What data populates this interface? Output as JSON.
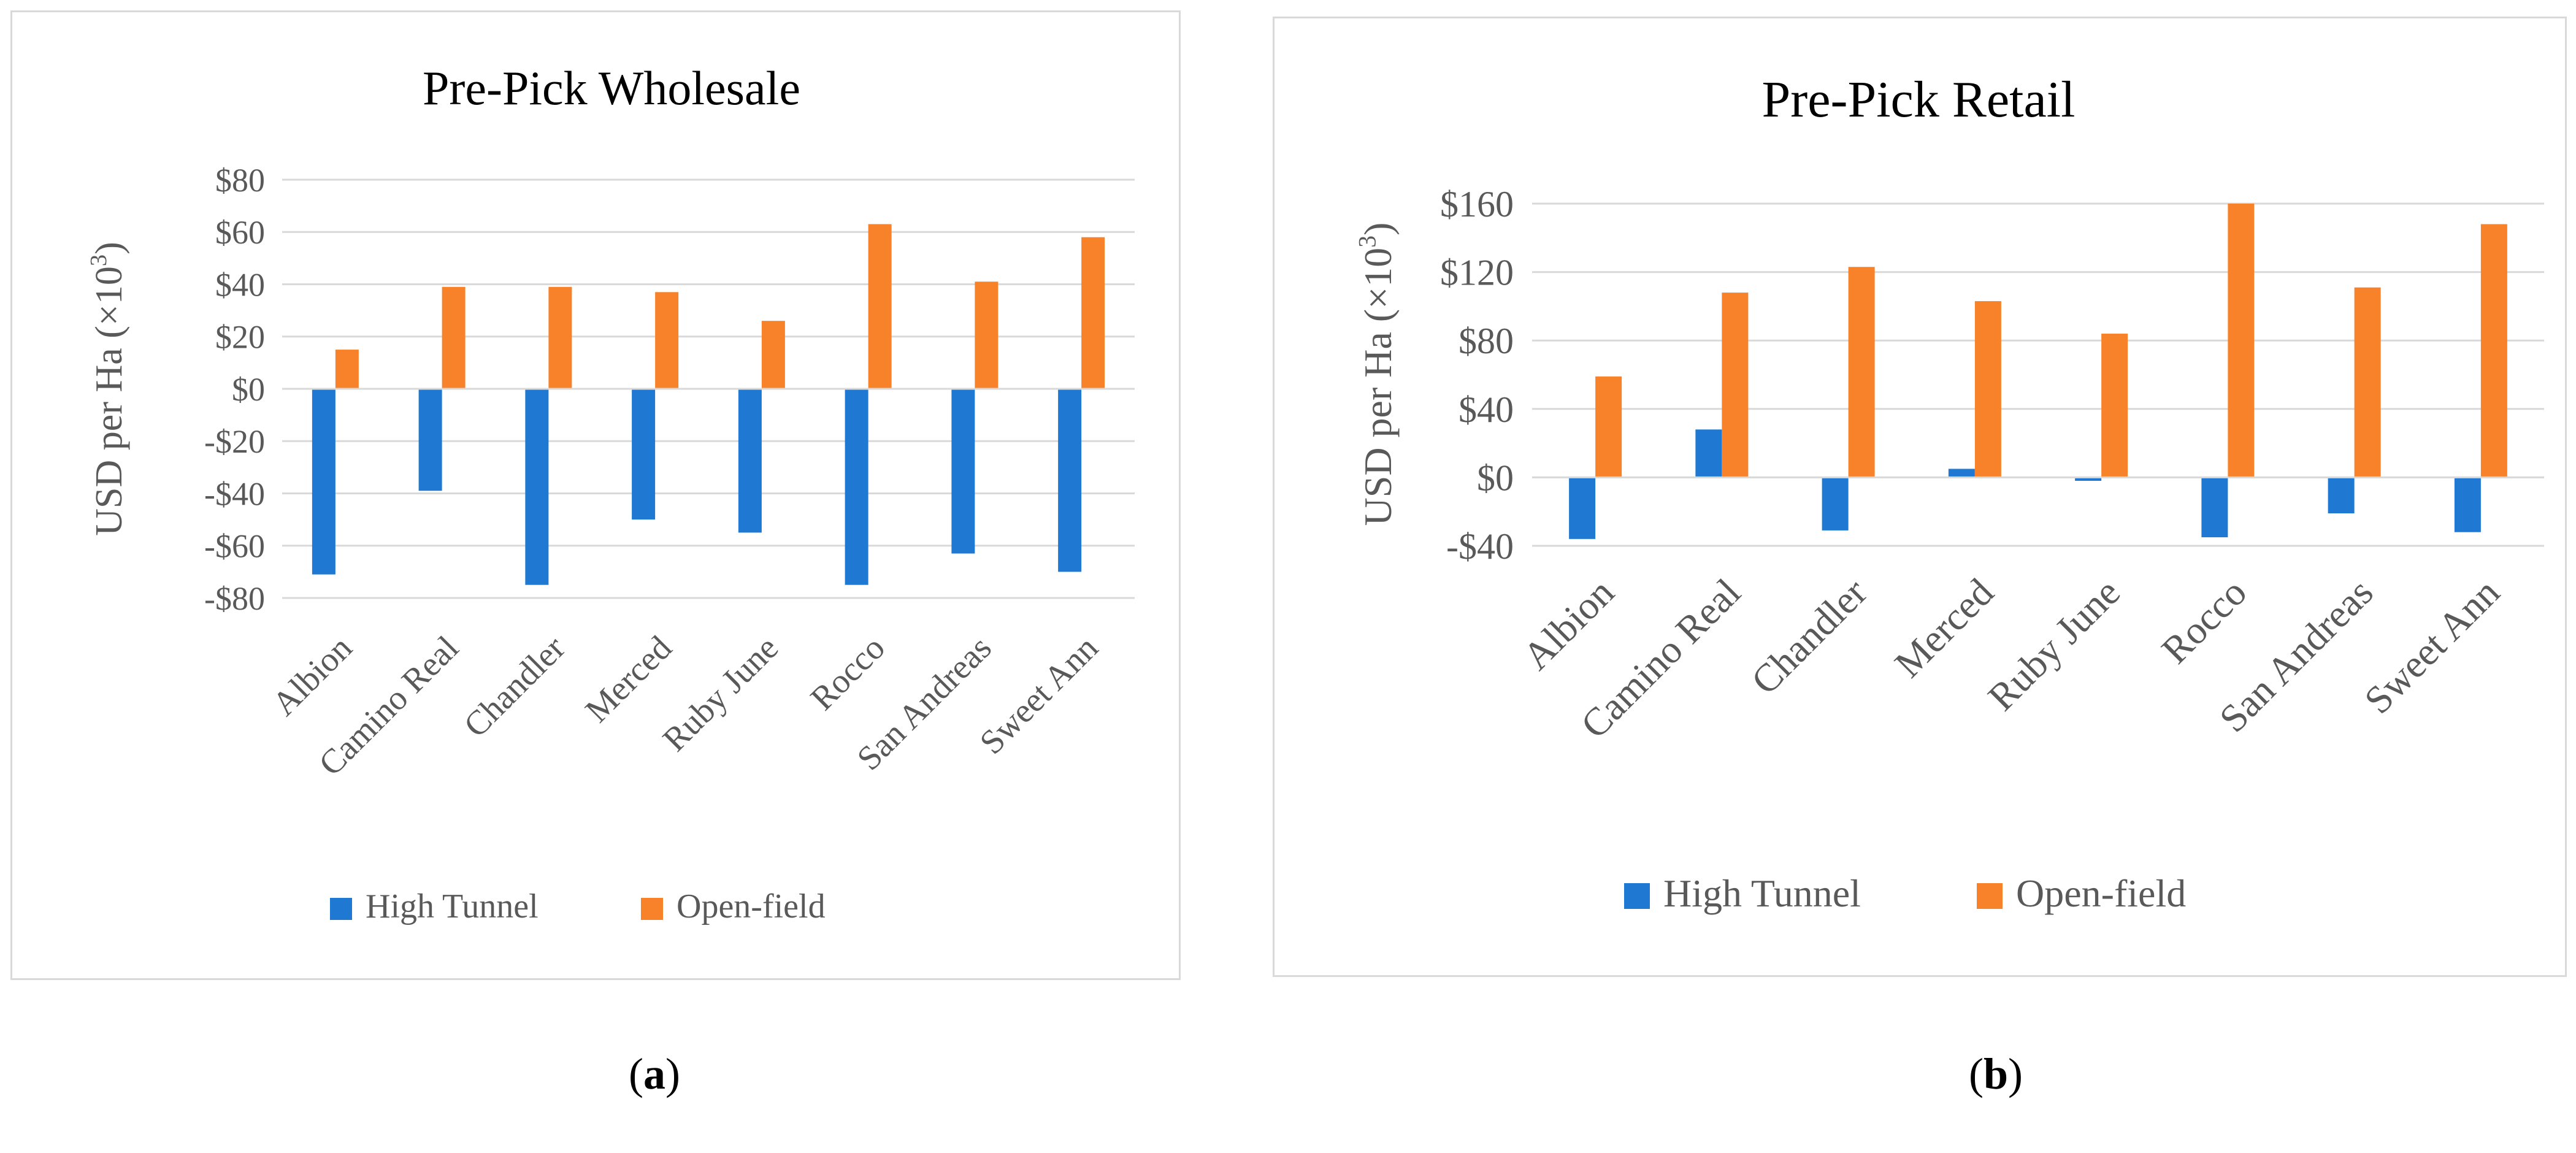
{
  "chart_data": [
    {
      "type": "bar",
      "title": "Pre-Pick Wholesale",
      "ylabel": "USD per Ha (×10",
      "ylabel_sup": "3",
      "ylabel_close": ")",
      "categories": [
        "Albion",
        "Camino Real",
        "Chandler",
        "Merced",
        "Ruby June",
        "Rocco",
        "San Andreas",
        "Sweet Ann"
      ],
      "series": [
        {
          "name": "High Tunnel",
          "color": "#1f78d1",
          "values": [
            -71,
            -39,
            -75,
            -50,
            -55,
            -75,
            -63,
            -70
          ]
        },
        {
          "name": "Open-field",
          "color": "#f8822a",
          "values": [
            15,
            39,
            39,
            37,
            26,
            63,
            41,
            58
          ]
        }
      ],
      "ylim": [
        -80,
        80
      ],
      "yticks": [
        -80,
        -60,
        -40,
        -20,
        0,
        20,
        40,
        60,
        80
      ],
      "ytick_labels": [
        "-$80",
        "-$60",
        "-$40",
        "-$20",
        "$0",
        "$20",
        "$40",
        "$60",
        "$80"
      ],
      "grid": true,
      "legend_position": "bottom"
    },
    {
      "type": "bar",
      "title": "Pre-Pick Retail",
      "ylabel": "USD per Ha (×10",
      "ylabel_sup": "3",
      "ylabel_close": ")",
      "categories": [
        "Albion",
        "Camino Real",
        "Chandler",
        "Merced",
        "Ruby June",
        "Rocco",
        "San Andreas",
        "Sweet Ann"
      ],
      "series": [
        {
          "name": "High Tunnel",
          "color": "#1f78d1",
          "values": [
            -36,
            28,
            -31,
            5,
            -2,
            -35,
            -21,
            -32
          ]
        },
        {
          "name": "Open-field",
          "color": "#f8822a",
          "values": [
            59,
            108,
            123,
            103,
            84,
            160,
            111,
            148
          ]
        }
      ],
      "ylim": [
        -40,
        160
      ],
      "yticks": [
        -40,
        0,
        40,
        80,
        120,
        160
      ],
      "ytick_labels": [
        "-$40",
        "$0",
        "$40",
        "$80",
        "$120",
        "$160"
      ],
      "grid": true,
      "legend_position": "bottom"
    }
  ],
  "captions": {
    "a_open": "(",
    "a_letter": "a",
    "a_close": ")",
    "b_open": "(",
    "b_letter": "b",
    "b_close": ")"
  }
}
